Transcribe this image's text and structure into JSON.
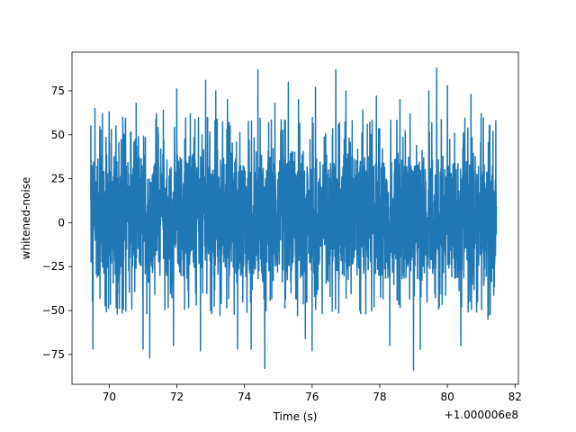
{
  "chart_data": {
    "type": "line",
    "title": "",
    "xlabel": "Time (s)",
    "ylabel": "whitened-noise",
    "x_offset_label": "+1.000006e8",
    "xlim": [
      68.9,
      82.1
    ],
    "ylim": [
      -92,
      97
    ],
    "x_ticks": [
      70,
      72,
      74,
      76,
      78,
      80,
      82
    ],
    "x_tick_labels": [
      "70",
      "72",
      "74",
      "76",
      "78",
      "80",
      "82"
    ],
    "y_ticks": [
      -75,
      -50,
      -25,
      0,
      25,
      50,
      75
    ],
    "y_tick_labels": [
      "−75",
      "−50",
      "−25",
      "0",
      "25",
      "50",
      "75"
    ],
    "grid": false,
    "series": [
      {
        "color": "#1f77b4",
        "x_start": 69.45,
        "x_end": 81.45,
        "band_low": -38,
        "band_high": 45,
        "spikes": [
          {
            "x": 69.52,
            "y": -72
          },
          {
            "x": 69.58,
            "y": 65
          },
          {
            "x": 69.8,
            "y": 62
          },
          {
            "x": 70.0,
            "y": 63
          },
          {
            "x": 70.2,
            "y": 55
          },
          {
            "x": 70.4,
            "y": 60
          },
          {
            "x": 70.8,
            "y": 68
          },
          {
            "x": 71.0,
            "y": -72
          },
          {
            "x": 71.2,
            "y": -77
          },
          {
            "x": 71.4,
            "y": 62
          },
          {
            "x": 71.6,
            "y": 64
          },
          {
            "x": 71.9,
            "y": -70
          },
          {
            "x": 72.0,
            "y": 76
          },
          {
            "x": 72.4,
            "y": 62
          },
          {
            "x": 72.7,
            "y": -73
          },
          {
            "x": 72.85,
            "y": 81
          },
          {
            "x": 73.0,
            "y": -65
          },
          {
            "x": 73.15,
            "y": 75
          },
          {
            "x": 73.5,
            "y": 70
          },
          {
            "x": 73.8,
            "y": -72
          },
          {
            "x": 74.2,
            "y": -72
          },
          {
            "x": 74.4,
            "y": 87
          },
          {
            "x": 74.6,
            "y": -83
          },
          {
            "x": 74.9,
            "y": 68
          },
          {
            "x": 75.3,
            "y": 80
          },
          {
            "x": 75.6,
            "y": 70
          },
          {
            "x": 75.8,
            "y": -66
          },
          {
            "x": 76.0,
            "y": -73
          },
          {
            "x": 76.1,
            "y": 77
          },
          {
            "x": 76.4,
            "y": 60
          },
          {
            "x": 76.7,
            "y": 87
          },
          {
            "x": 77.0,
            "y": 75
          },
          {
            "x": 77.5,
            "y": 64
          },
          {
            "x": 77.9,
            "y": 72
          },
          {
            "x": 78.3,
            "y": -70
          },
          {
            "x": 78.6,
            "y": 70
          },
          {
            "x": 78.9,
            "y": 62
          },
          {
            "x": 79.0,
            "y": -84
          },
          {
            "x": 79.2,
            "y": -72
          },
          {
            "x": 79.45,
            "y": 75
          },
          {
            "x": 79.68,
            "y": 88
          },
          {
            "x": 80.0,
            "y": 78
          },
          {
            "x": 80.4,
            "y": -70
          },
          {
            "x": 80.7,
            "y": 73
          },
          {
            "x": 81.0,
            "y": 62
          },
          {
            "x": 81.2,
            "y": -55
          },
          {
            "x": 81.35,
            "y": 52
          }
        ]
      }
    ]
  }
}
